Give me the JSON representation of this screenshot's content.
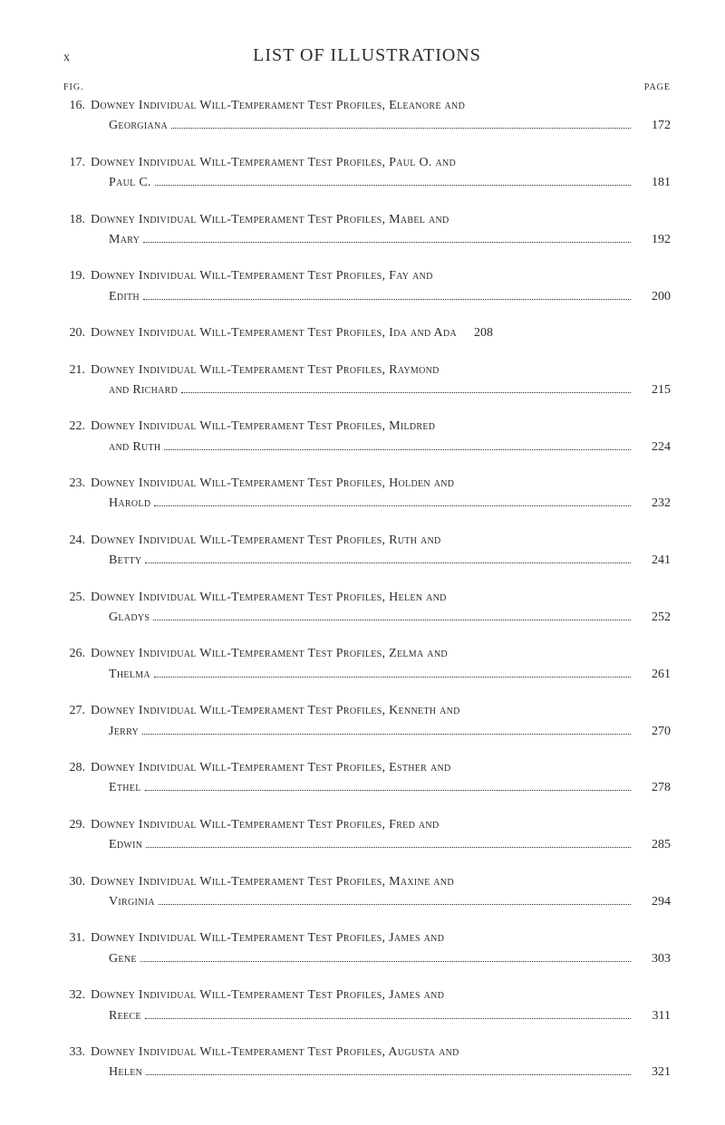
{
  "header": {
    "page_marker": "x",
    "title": "LIST OF ILLUSTRATIONS"
  },
  "column_labels": {
    "fig": "FIG.",
    "page": "PAGE"
  },
  "entries": [
    {
      "num": "16.",
      "line1": "Downey Individual Will-Temperament Test Profiles, Eleanore and",
      "line2": "Georgiana",
      "page": "172",
      "single": false
    },
    {
      "num": "17.",
      "line1": "Downey Individual Will-Temperament Test Profiles, Paul O. and",
      "line2": "Paul C.",
      "page": "181",
      "single": false
    },
    {
      "num": "18.",
      "line1": "Downey Individual Will-Temperament Test Profiles, Mabel and",
      "line2": "Mary",
      "page": "192",
      "single": false
    },
    {
      "num": "19.",
      "line1": "Downey Individual Will-Temperament Test Profiles, Fay and",
      "line2": "Edith",
      "page": "200",
      "single": false
    },
    {
      "num": "20.",
      "line1": "Downey Individual Will-Temperament Test Profiles, Ida and Ada",
      "line2": "",
      "page": "208",
      "single": true
    },
    {
      "num": "21.",
      "line1": "Downey Individual Will-Temperament Test Profiles, Raymond",
      "line2": "and Richard",
      "page": "215",
      "single": false
    },
    {
      "num": "22.",
      "line1": "Downey Individual Will-Temperament Test Profiles, Mildred",
      "line2": "and Ruth",
      "page": "224",
      "single": false
    },
    {
      "num": "23.",
      "line1": "Downey Individual Will-Temperament Test Profiles, Holden and",
      "line2": "Harold",
      "page": "232",
      "single": false
    },
    {
      "num": "24.",
      "line1": "Downey Individual Will-Temperament Test Profiles, Ruth and",
      "line2": "Betty",
      "page": "241",
      "single": false
    },
    {
      "num": "25.",
      "line1": "Downey Individual Will-Temperament Test Profiles, Helen and",
      "line2": "Gladys",
      "page": "252",
      "single": false
    },
    {
      "num": "26.",
      "line1": "Downey Individual Will-Temperament Test Profiles, Zelma and",
      "line2": "Thelma",
      "page": "261",
      "single": false
    },
    {
      "num": "27.",
      "line1": "Downey Individual Will-Temperament Test Profiles, Kenneth and",
      "line2": "Jerry",
      "page": "270",
      "single": false
    },
    {
      "num": "28.",
      "line1": "Downey Individual Will-Temperament Test Profiles, Esther and",
      "line2": "Ethel",
      "page": "278",
      "single": false
    },
    {
      "num": "29.",
      "line1": "Downey Individual Will-Temperament Test Profiles, Fred and",
      "line2": "Edwin",
      "page": "285",
      "single": false
    },
    {
      "num": "30.",
      "line1": "Downey Individual Will-Temperament Test Profiles, Maxine and",
      "line2": "Virginia",
      "page": "294",
      "single": false
    },
    {
      "num": "31.",
      "line1": "Downey Individual Will-Temperament Test Profiles, James and",
      "line2": "Gene",
      "page": "303",
      "single": false
    },
    {
      "num": "32.",
      "line1": "Downey Individual Will-Temperament Test Profiles, James and",
      "line2": "Reece",
      "page": "311",
      "single": false
    },
    {
      "num": "33.",
      "line1": "Downey Individual Will-Temperament Test Profiles, Augusta and",
      "line2": "Helen",
      "page": "321",
      "single": false
    }
  ]
}
